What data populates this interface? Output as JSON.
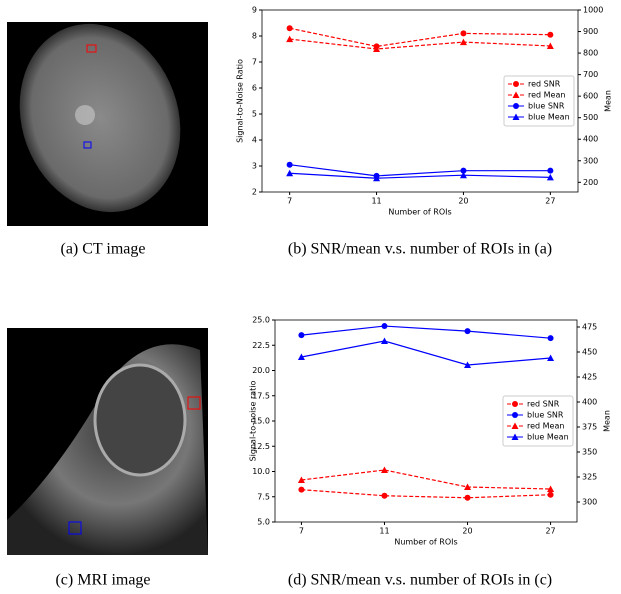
{
  "images": [
    {
      "caption": "(a) CT image"
    },
    {
      "caption": "(c) MRI image"
    }
  ],
  "chart_data": [
    {
      "type": "line",
      "caption": "(b) SNR/mean v.s. number of ROIs in (a)",
      "x_label": "Number of ROIs",
      "y_label": "Signal-to-Noise Ratio",
      "y2_label": "Mean",
      "categories": [
        "7",
        "11",
        "20",
        "27"
      ],
      "ylim": [
        2,
        9
      ],
      "yticks": [
        2,
        3,
        4,
        5,
        6,
        7,
        8,
        9
      ],
      "y2lim": [
        155,
        1000
      ],
      "y2ticks": [
        200,
        300,
        400,
        500,
        600,
        700,
        800,
        900,
        1000
      ],
      "legend": "center right",
      "series": [
        {
          "name": "red SNR",
          "color": "#ff0000",
          "marker": "circle",
          "dash": true,
          "values": [
            8.3,
            7.6,
            8.1,
            8.05
          ]
        },
        {
          "name": "red Mean",
          "color": "#ff0000",
          "marker": "triangle",
          "dash": true,
          "axis": "y2",
          "values": [
            865,
            819,
            851,
            833
          ]
        },
        {
          "name": "blue SNR",
          "color": "#0000ff",
          "marker": "circle",
          "dash": false,
          "values": [
            3.05,
            2.62,
            2.82,
            2.82
          ]
        },
        {
          "name": "blue Mean",
          "color": "#0000ff",
          "marker": "triangle",
          "dash": false,
          "axis": "y2",
          "values": [
            242,
            219,
            233,
            223
          ]
        }
      ]
    },
    {
      "type": "line",
      "caption": "(d) SNR/mean v.s. number of ROIs in (c)",
      "x_label": "Number of ROIs",
      "y_label": "Signal-to-noise ratio",
      "y2_label": "Mean",
      "categories": [
        "7",
        "11",
        "20",
        "27"
      ],
      "ylim": [
        5,
        25
      ],
      "yticks": [
        {
          "value": 5,
          "label": "5.0"
        },
        7.5,
        {
          "value": 10,
          "label": "10.0"
        },
        12.5,
        {
          "value": 15,
          "label": "15.0"
        },
        17.5,
        {
          "value": 20,
          "label": "20.0"
        },
        22.5,
        {
          "value": 25,
          "label": "25.0"
        }
      ],
      "y2lim": [
        280,
        482
      ],
      "y2ticks": [
        300,
        325,
        350,
        375,
        400,
        425,
        450,
        475
      ],
      "legend": "center right",
      "series": [
        {
          "name": "red SNR",
          "color": "#ff0000",
          "marker": "circle",
          "dash": true,
          "values": [
            8.2,
            7.6,
            7.4,
            7.7
          ]
        },
        {
          "name": "blue SNR",
          "color": "#0000ff",
          "marker": "circle",
          "dash": false,
          "values": [
            23.5,
            24.4,
            23.9,
            23.2
          ]
        },
        {
          "name": "red Mean",
          "color": "#ff0000",
          "marker": "triangle",
          "dash": true,
          "axis": "y2",
          "values": [
            322,
            332,
            315,
            313
          ]
        },
        {
          "name": "blue Mean",
          "color": "#0000ff",
          "marker": "triangle",
          "dash": false,
          "axis": "y2",
          "values": [
            445,
            461,
            437,
            444
          ]
        }
      ]
    }
  ]
}
